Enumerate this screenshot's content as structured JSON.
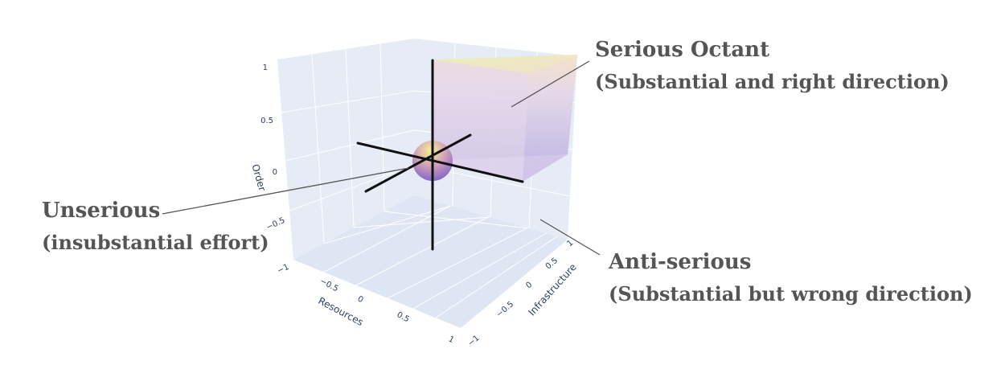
{
  "scene": {
    "axes": {
      "x": {
        "title": "Resources",
        "ticks": [
          "−1",
          "−0.5",
          "0",
          "0.5",
          "1"
        ]
      },
      "y": {
        "title": "Infrastructure",
        "ticks": [
          "−1",
          "−0.5",
          "0",
          "0.5",
          "1"
        ]
      },
      "z": {
        "title": "Order",
        "ticks": [
          "−1",
          "−0.5",
          "0",
          "0.5",
          "1"
        ]
      }
    },
    "colors": {
      "pane": "#e5ecf6",
      "grid": "#ffffff",
      "tick_text": "#2a3f5f",
      "annotation_text": "#555555",
      "octant_top": "#e8f0b8",
      "octant_bottom": "#a9a6e0",
      "sphere_top": "#f3e98a",
      "sphere_bottom": "#7b5fc9"
    }
  },
  "annotations": {
    "serious": {
      "title": "Serious Octant",
      "subtitle": "(Substantial and right direction)"
    },
    "unserious": {
      "title": "Unserious",
      "subtitle": "(insubstantial effort)"
    },
    "anti": {
      "title": "Anti-serious",
      "subtitle": "(Substantial but wrong direction)"
    }
  }
}
